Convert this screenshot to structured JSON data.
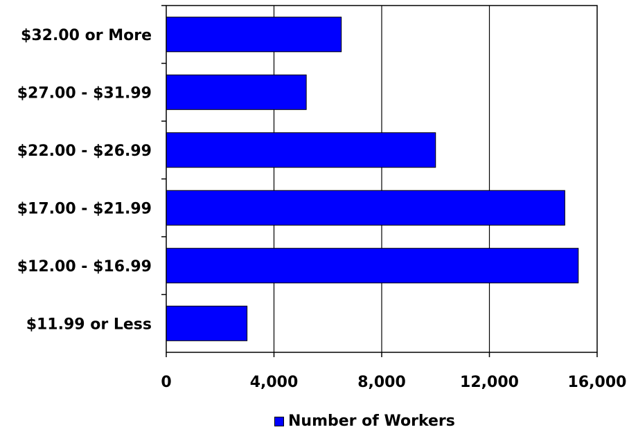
{
  "chart_data": {
    "type": "bar",
    "orientation": "horizontal",
    "categories": [
      "$32.00 or More",
      "$27.00 - $31.99",
      "$22.00 - $26.99",
      "$17.00 - $21.99",
      "$12.00 - $16.99",
      "$11.99 or Less"
    ],
    "series": [
      {
        "name": "Number of Workers",
        "values": [
          6500,
          5200,
          10000,
          14800,
          15300,
          3000
        ],
        "color": "#0000ff"
      }
    ],
    "xlim": [
      0,
      16000
    ],
    "xticks": [
      0,
      4000,
      8000,
      12000,
      16000
    ],
    "xtick_labels": [
      "0",
      "4,000",
      "8,000",
      "12,000",
      "16,000"
    ],
    "grid": "vertical",
    "legend_position": "bottom",
    "title": "",
    "xlabel": "",
    "ylabel": ""
  },
  "legend": {
    "label": "Number of Workers"
  }
}
